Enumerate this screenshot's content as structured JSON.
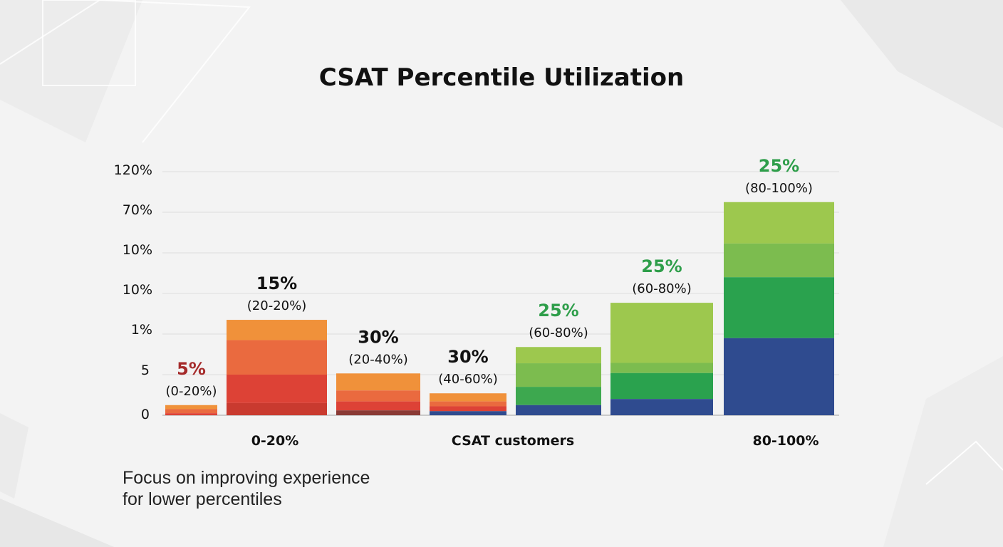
{
  "chart_data": {
    "type": "bar",
    "title": "CSAT Percentile Utilization",
    "xlabel": "CSAT customers",
    "ylabel": "",
    "y_tick_labels": [
      "0",
      "5",
      "1%",
      "10%",
      "10%",
      "70%",
      "120%"
    ],
    "x_tick_labels": [
      "0-20%",
      "CSAT customers",
      "80-100%"
    ],
    "grid": true,
    "bars": [
      {
        "label_pct": "5%",
        "label_range": "(0-20%)",
        "level": 0.25,
        "pct_color": "#a52a2a",
        "layers": [
          {
            "color": "#f0913a",
            "value": 0.1
          },
          {
            "color": "#ea6a3f",
            "value": 0.1
          },
          {
            "color": "#dd4236",
            "value": 0.06
          }
        ]
      },
      {
        "label_pct": "15%",
        "label_range": "(20-20%)",
        "level": 2.35,
        "pct_color": "#111111",
        "layers": [
          {
            "color": "#f0913a",
            "value": 0.5
          },
          {
            "color": "#ea6a3f",
            "value": 0.85
          },
          {
            "color": "#dd4236",
            "value": 0.7
          },
          {
            "color": "#c93a2f",
            "value": 0.3
          }
        ]
      },
      {
        "label_pct": "30%",
        "label_range": "(20-40%)",
        "level": 1.03,
        "pct_color": "#111111",
        "layers": [
          {
            "color": "#f0913a",
            "value": 0.42
          },
          {
            "color": "#ea6a3f",
            "value": 0.27
          },
          {
            "color": "#dd4236",
            "value": 0.22
          },
          {
            "color": "#8a3a35",
            "value": 0.12
          }
        ]
      },
      {
        "label_pct": "30%",
        "label_range": "(40-60%)",
        "level": 0.54,
        "pct_color": "#111111",
        "layers": [
          {
            "color": "#f0913a",
            "value": 0.2
          },
          {
            "color": "#ea6a3f",
            "value": 0.12
          },
          {
            "color": "#dd4236",
            "value": 0.12
          },
          {
            "color": "#2f4b8f",
            "value": 0.1
          }
        ]
      },
      {
        "label_pct": "25%",
        "label_range": "(60-80%)",
        "level": 1.68,
        "pct_color": "#2e9e4a",
        "layers": [
          {
            "color": "#9dc84e",
            "value": 0.4
          },
          {
            "color": "#7cbc4f",
            "value": 0.58
          },
          {
            "color": "#3da84f",
            "value": 0.45
          },
          {
            "color": "#2f4b8f",
            "value": 0.25
          }
        ]
      },
      {
        "label_pct": "25%",
        "label_range": "(60-80%)",
        "level": 2.77,
        "pct_color": "#2e9e4a",
        "layers": [
          {
            "color": "#9dc84e",
            "value": 1.48
          },
          {
            "color": "#7cbc4f",
            "value": 0.25
          },
          {
            "color": "#2aa24e",
            "value": 0.64
          },
          {
            "color": "#2f4b8f",
            "value": 0.4
          }
        ]
      },
      {
        "label_pct": "25%",
        "label_range": "(80-100%)",
        "level": 5.25,
        "pct_color": "#2e9e4a",
        "layers": [
          {
            "color": "#9dc84e",
            "value": 1.02
          },
          {
            "color": "#7cbc4f",
            "value": 0.83
          },
          {
            "color": "#2aa24e",
            "value": 1.5
          },
          {
            "color": "#2f4b8f",
            "value": 1.9
          }
        ]
      }
    ]
  },
  "note": "Focus on improving experience\nfor lower percentiles"
}
